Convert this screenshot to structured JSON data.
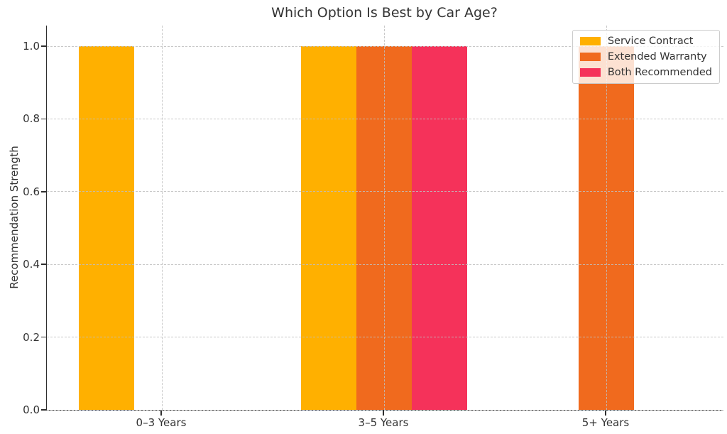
{
  "chart_data": {
    "type": "bar",
    "title": "Which Option Is Best by Car Age?",
    "xlabel": "",
    "ylabel": "Recommendation Strength",
    "categories": [
      "0–3 Years",
      "3–5 Years",
      "5+ Years"
    ],
    "series": [
      {
        "name": "Service Contract",
        "color": "#FFB000",
        "values": [
          1,
          1,
          0
        ]
      },
      {
        "name": "Extended Warranty",
        "color": "#F06A1E",
        "values": [
          0,
          1,
          1
        ]
      },
      {
        "name": "Both Recommended",
        "color": "#F5325A",
        "values": [
          0,
          1,
          0
        ]
      }
    ],
    "bar_width": 0.25,
    "yticks": [
      0.0,
      0.2,
      0.4,
      0.6,
      0.8,
      1.0
    ],
    "ylim": [
      0,
      1.05
    ],
    "grid": true,
    "grid_style": "dashed",
    "legend_position": "upper right",
    "text_color": "#333333",
    "spine_color": "#2e2e2e"
  }
}
